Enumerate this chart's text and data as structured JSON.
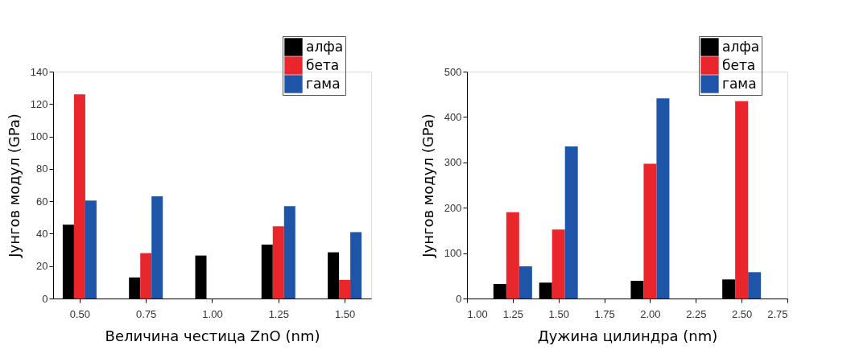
{
  "chart_data": [
    {
      "type": "bar",
      "xlabel": "Величина честица ZnO (nm)",
      "ylabel": "Јунгов модул (GPa)",
      "x": [
        0.5,
        0.75,
        1.0,
        1.25,
        1.5
      ],
      "xlim": [
        0.4,
        1.6
      ],
      "xticks": [
        {
          "value": 0.5,
          "label": "0.50"
        },
        {
          "value": 0.75,
          "label": "0.75"
        },
        {
          "value": 1.0,
          "label": "1.00"
        },
        {
          "value": 1.25,
          "label": "1.25"
        },
        {
          "value": 1.5,
          "label": "1.50"
        }
      ],
      "ylim": [
        0,
        140
      ],
      "yticks": [
        0,
        20,
        40,
        60,
        80,
        100,
        120,
        140
      ],
      "grid": false,
      "legend": "top right",
      "series": [
        {
          "name": "алфа",
          "color": "#000000",
          "values": [
            45.5,
            13,
            26.5,
            33.3,
            28.5
          ]
        },
        {
          "name": "бета",
          "color": "#e8262b",
          "values": [
            126,
            28,
            null,
            44.5,
            11.5
          ]
        },
        {
          "name": "гама",
          "color": "#1f55a8",
          "values": [
            60.5,
            63,
            null,
            57,
            41
          ]
        }
      ]
    },
    {
      "type": "bar",
      "xlabel": "Дужина цилиндра (nm)",
      "ylabel": "Јунгов модул (GPa)",
      "x": [
        1.25,
        1.5,
        2.0,
        2.5
      ],
      "xlim": [
        1.0,
        2.75
      ],
      "xticks": [
        {
          "value": 1.0,
          "label": "1.00"
        },
        {
          "value": 1.25,
          "label": "1.25"
        },
        {
          "value": 1.5,
          "label": "1.50"
        },
        {
          "value": 1.75,
          "label": "1.75"
        },
        {
          "value": 2.0,
          "label": "2.00"
        },
        {
          "value": 2.25,
          "label": "2.25"
        },
        {
          "value": 2.5,
          "label": "2.50"
        },
        {
          "value": 2.75,
          "label": "2.75"
        }
      ],
      "ylim": [
        0,
        500
      ],
      "yticks": [
        0,
        100,
        200,
        300,
        400,
        500
      ],
      "grid": false,
      "legend": "top right",
      "series": [
        {
          "name": "алфа",
          "color": "#000000",
          "values": [
            32,
            35,
            39,
            42
          ]
        },
        {
          "name": "бета",
          "color": "#e8262b",
          "values": [
            190,
            152,
            297,
            435
          ]
        },
        {
          "name": "гама",
          "color": "#1f55a8",
          "values": [
            71,
            335,
            441,
            58
          ]
        }
      ]
    }
  ]
}
